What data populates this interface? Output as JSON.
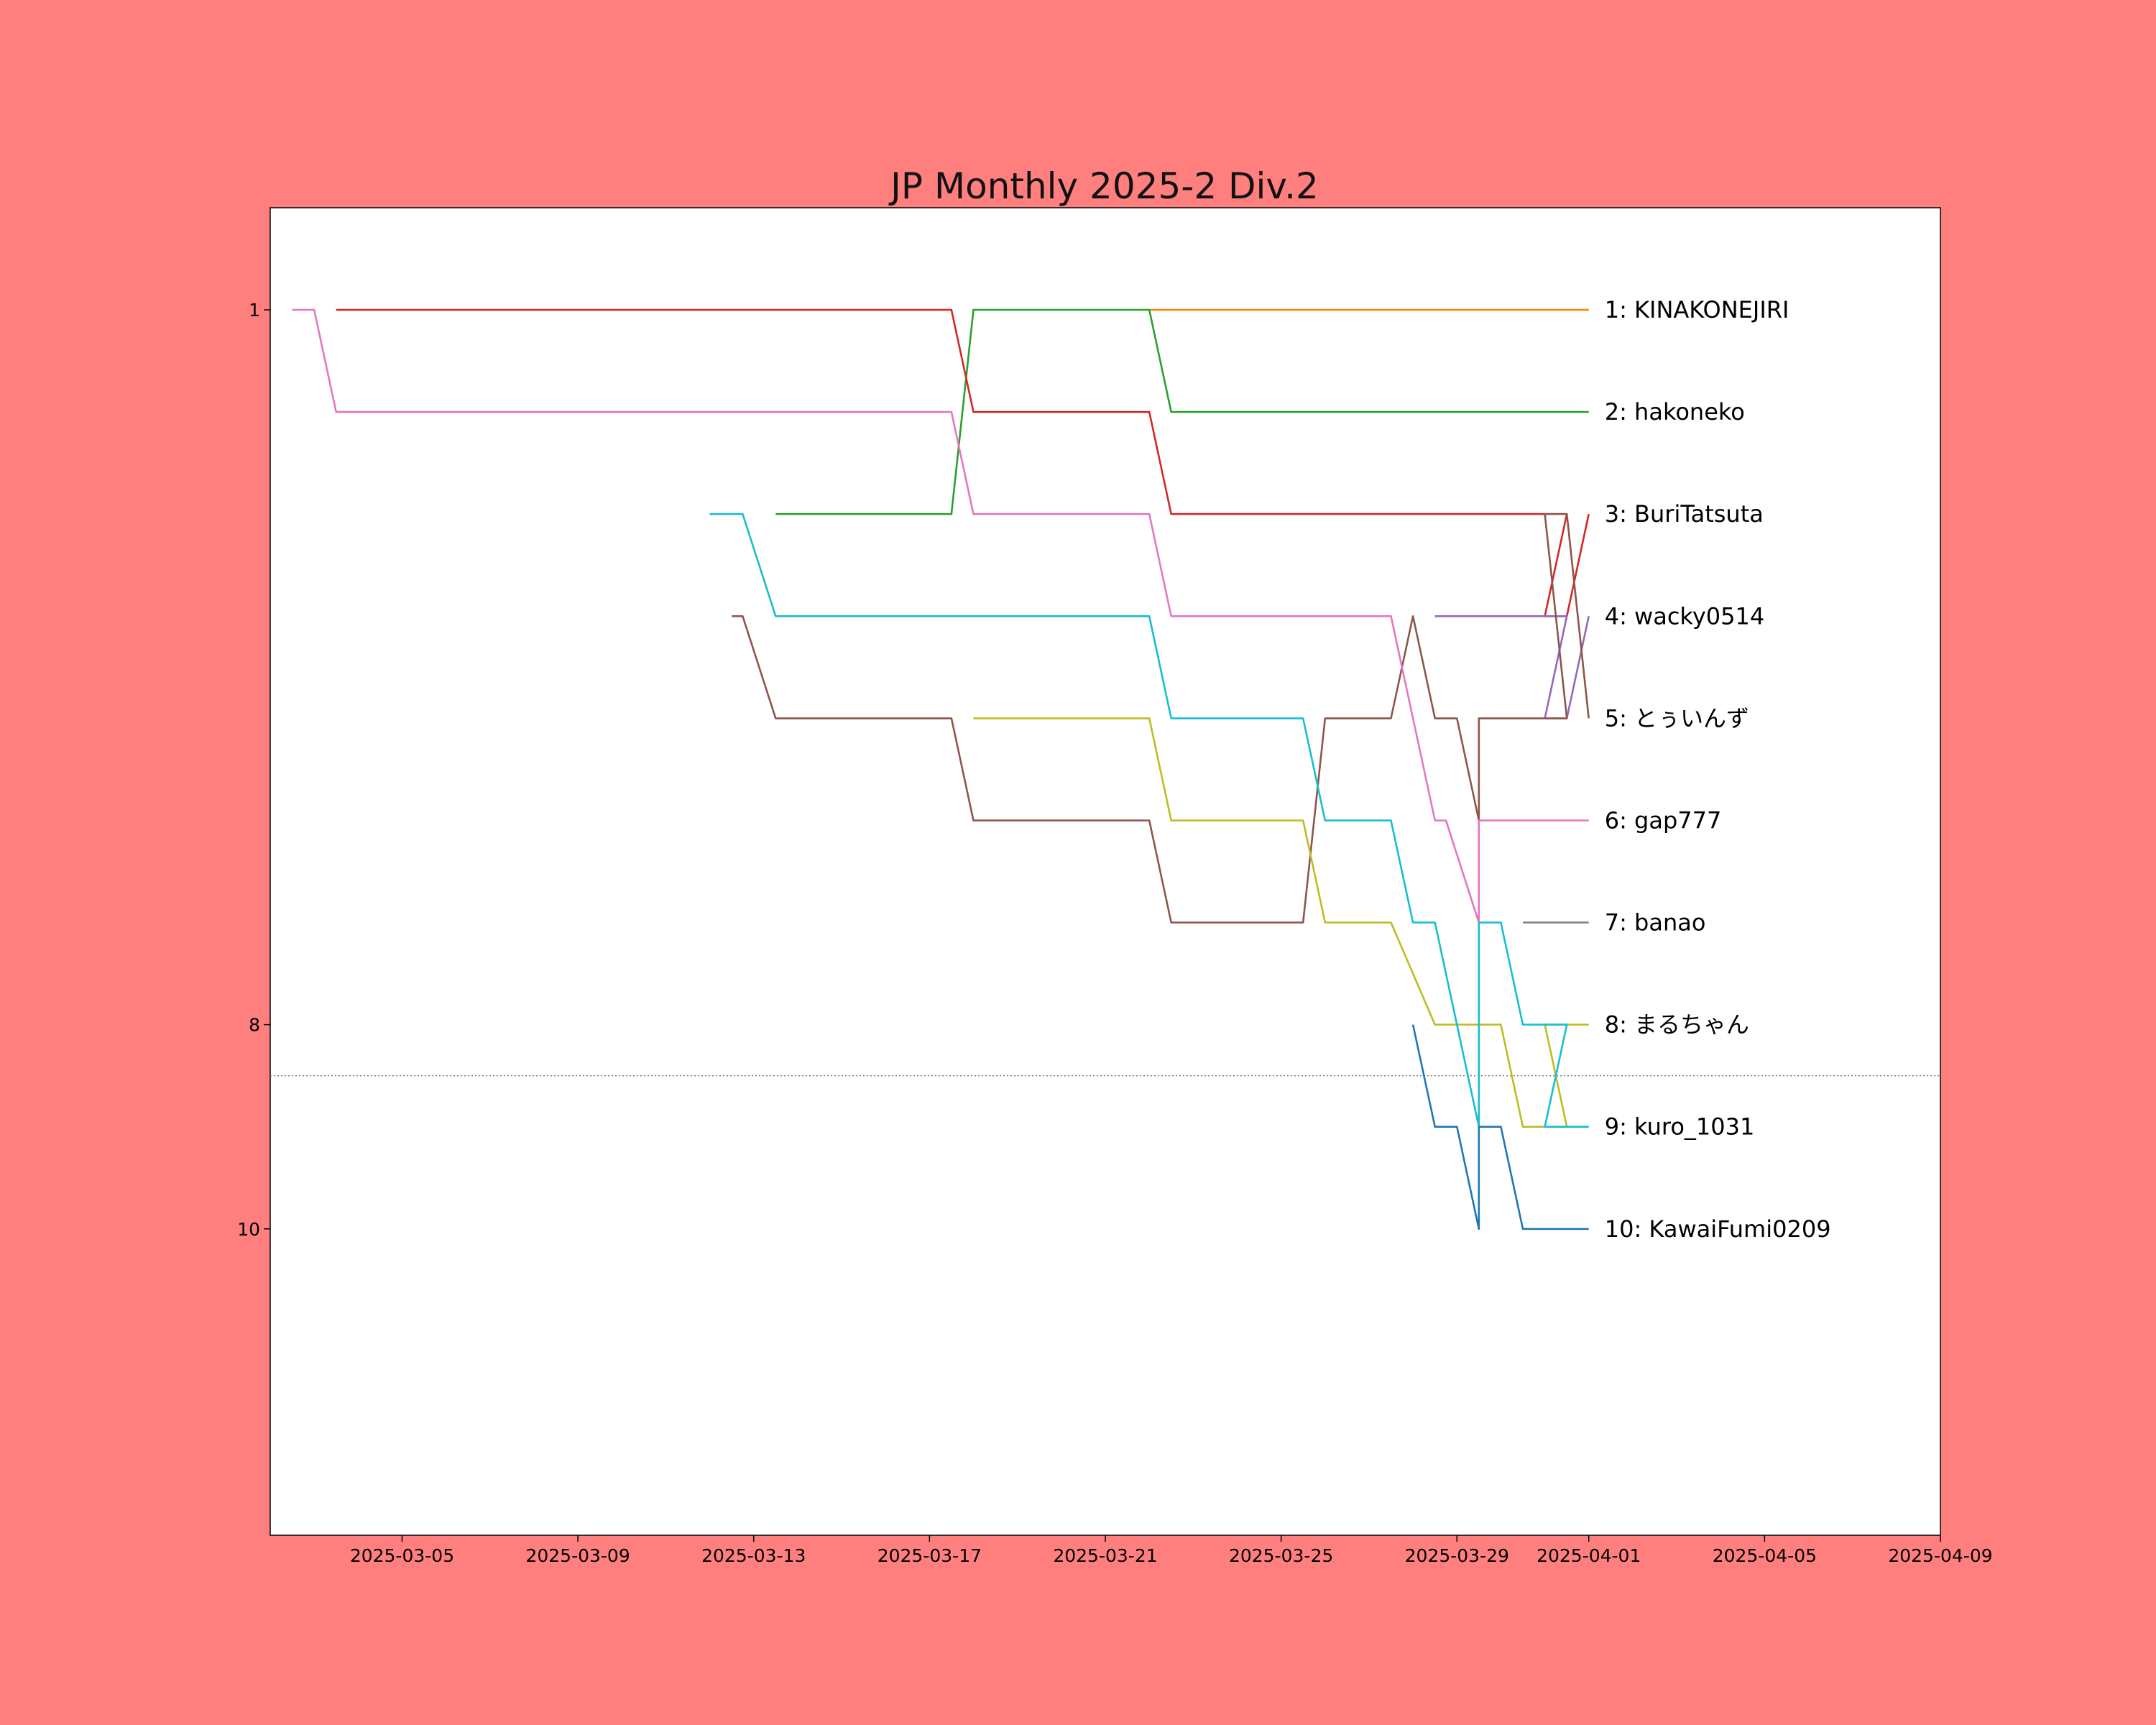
{
  "chart_data": {
    "type": "line",
    "title": "JP Monthly 2025-2 Div.2",
    "xlabel": "",
    "ylabel": "",
    "x_range": [
      "2025-03-02",
      "2025-04-09"
    ],
    "y_range": [
      13,
      0
    ],
    "y_inverted": true,
    "x_ticks": [
      "2025-03-05",
      "2025-03-09",
      "2025-03-13",
      "2025-03-17",
      "2025-03-21",
      "2025-03-25",
      "2025-03-29",
      "2025-04-01",
      "2025-04-05",
      "2025-04-09"
    ],
    "y_ticks": [
      1,
      8,
      10
    ],
    "cutoff_line": 8.5,
    "grid": false,
    "legend": "labels at right end of each line",
    "series": [
      {
        "name": "1: KINAKONEJIRI",
        "color": "#ff7f0e",
        "points": [
          [
            "2025-03-22 00:00",
            1
          ],
          [
            "2025-04-01 00:00",
            1
          ]
        ]
      },
      {
        "name": "2: hakoneko",
        "color": "#2ca02c",
        "points": [
          [
            "2025-03-13 12:00",
            3
          ],
          [
            "2025-03-17 12:00",
            3
          ],
          [
            "2025-03-18 00:00",
            1
          ],
          [
            "2025-03-22 00:00",
            1
          ],
          [
            "2025-03-22 12:00",
            2
          ],
          [
            "2025-04-01 00:00",
            2
          ]
        ]
      },
      {
        "name": "3: BuriTatsuta",
        "color": "#d62728",
        "points": [
          [
            "2025-03-03 12:00",
            1
          ],
          [
            "2025-03-17 12:00",
            1
          ],
          [
            "2025-03-18 00:00",
            2
          ],
          [
            "2025-03-22 00:00",
            2
          ],
          [
            "2025-03-22 12:00",
            3
          ],
          [
            "2025-03-31 12:00",
            3
          ],
          [
            "2025-03-31 00:00",
            4
          ],
          [
            "2025-03-31 12:00",
            4
          ],
          [
            "2025-04-01 00:00",
            3
          ]
        ]
      },
      {
        "name": "4: wacky0514",
        "color": "#9467bd",
        "points": [
          [
            "2025-03-28 12:00",
            4
          ],
          [
            "2025-03-31 12:00",
            4
          ],
          [
            "2025-03-31 00:00",
            5
          ],
          [
            "2025-03-31 12:00",
            5
          ],
          [
            "2025-04-01 00:00",
            4
          ]
        ]
      },
      {
        "name": "5: とぅいんず",
        "color": "#8c564b",
        "points": [
          [
            "2025-03-12 12:00",
            4
          ],
          [
            "2025-03-12 18:00",
            4
          ],
          [
            "2025-03-13 12:00",
            5
          ],
          [
            "2025-03-17 12:00",
            5
          ],
          [
            "2025-03-18 00:00",
            6
          ],
          [
            "2025-03-22 00:00",
            6
          ],
          [
            "2025-03-22 12:00",
            7
          ],
          [
            "2025-03-25 12:00",
            7
          ],
          [
            "2025-03-26 00:00",
            5
          ],
          [
            "2025-03-27 12:00",
            5
          ],
          [
            "2025-03-28 00:00",
            4
          ],
          [
            "2025-03-28 12:00",
            5
          ],
          [
            "2025-03-29 00:00",
            5
          ],
          [
            "2025-03-29 12:00",
            6
          ],
          [
            "2025-03-29 12:00",
            5
          ],
          [
            "2025-03-31 12:00",
            5
          ],
          [
            "2025-03-31 00:00",
            3
          ],
          [
            "2025-03-31 12:00",
            3
          ],
          [
            "2025-04-01 00:00",
            5
          ]
        ]
      },
      {
        "name": "6: gap777",
        "color": "#e377c2",
        "points": [
          [
            "2025-03-02 12:00",
            1
          ],
          [
            "2025-03-03 00:00",
            1
          ],
          [
            "2025-03-03 12:00",
            2
          ],
          [
            "2025-03-17 12:00",
            2
          ],
          [
            "2025-03-18 00:00",
            3
          ],
          [
            "2025-03-22 00:00",
            3
          ],
          [
            "2025-03-22 12:00",
            4
          ],
          [
            "2025-03-27 12:00",
            4
          ],
          [
            "2025-03-28 12:00",
            6
          ],
          [
            "2025-03-28 18:00",
            6
          ],
          [
            "2025-03-29 12:00",
            7
          ],
          [
            "2025-03-29 12:00",
            6
          ],
          [
            "2025-04-01 00:00",
            6
          ]
        ]
      },
      {
        "name": "7: banao",
        "color": "#7f7f7f",
        "points": [
          [
            "2025-03-30 12:00",
            7
          ],
          [
            "2025-04-01 00:00",
            7
          ]
        ]
      },
      {
        "name": "8: まるちゃん",
        "color": "#bcbd22",
        "points": [
          [
            "2025-03-18 00:00",
            5
          ],
          [
            "2025-03-22 00:00",
            5
          ],
          [
            "2025-03-22 12:00",
            6
          ],
          [
            "2025-03-25 12:00",
            6
          ],
          [
            "2025-03-26 00:00",
            7
          ],
          [
            "2025-03-27 12:00",
            7
          ],
          [
            "2025-03-28 12:00",
            8
          ],
          [
            "2025-03-30 00:00",
            8
          ],
          [
            "2025-03-30 12:00",
            9
          ],
          [
            "2025-03-31 12:00",
            9
          ],
          [
            "2025-03-31 00:00",
            8
          ],
          [
            "2025-04-01 00:00",
            8
          ]
        ]
      },
      {
        "name": "9: kuro_1031",
        "color": "#17becf",
        "points": [
          [
            "2025-03-12 00:00",
            3
          ],
          [
            "2025-03-12 18:00",
            3
          ],
          [
            "2025-03-13 12:00",
            4
          ],
          [
            "2025-03-22 00:00",
            4
          ],
          [
            "2025-03-22 12:00",
            5
          ],
          [
            "2025-03-25 12:00",
            5
          ],
          [
            "2025-03-26 00:00",
            6
          ],
          [
            "2025-03-27 12:00",
            6
          ],
          [
            "2025-03-28 00:00",
            7
          ],
          [
            "2025-03-28 12:00",
            7
          ],
          [
            "2025-03-29 12:00",
            9
          ],
          [
            "2025-03-29 12:00",
            7
          ],
          [
            "2025-03-30 00:00",
            7
          ],
          [
            "2025-03-30 12:00",
            8
          ],
          [
            "2025-03-31 12:00",
            8
          ],
          [
            "2025-03-31 00:00",
            9
          ],
          [
            "2025-04-01 00:00",
            9
          ]
        ]
      },
      {
        "name": "10: KawaiFumi0209",
        "color": "#1f77b4",
        "points": [
          [
            "2025-03-28 00:00",
            8
          ],
          [
            "2025-03-28 12:00",
            9
          ],
          [
            "2025-03-29 00:00",
            9
          ],
          [
            "2025-03-29 12:00",
            10
          ],
          [
            "2025-03-29 12:00",
            9
          ],
          [
            "2025-03-30 00:00",
            9
          ],
          [
            "2025-03-30 12:00",
            10
          ],
          [
            "2025-04-01 00:00",
            10
          ]
        ]
      }
    ]
  }
}
